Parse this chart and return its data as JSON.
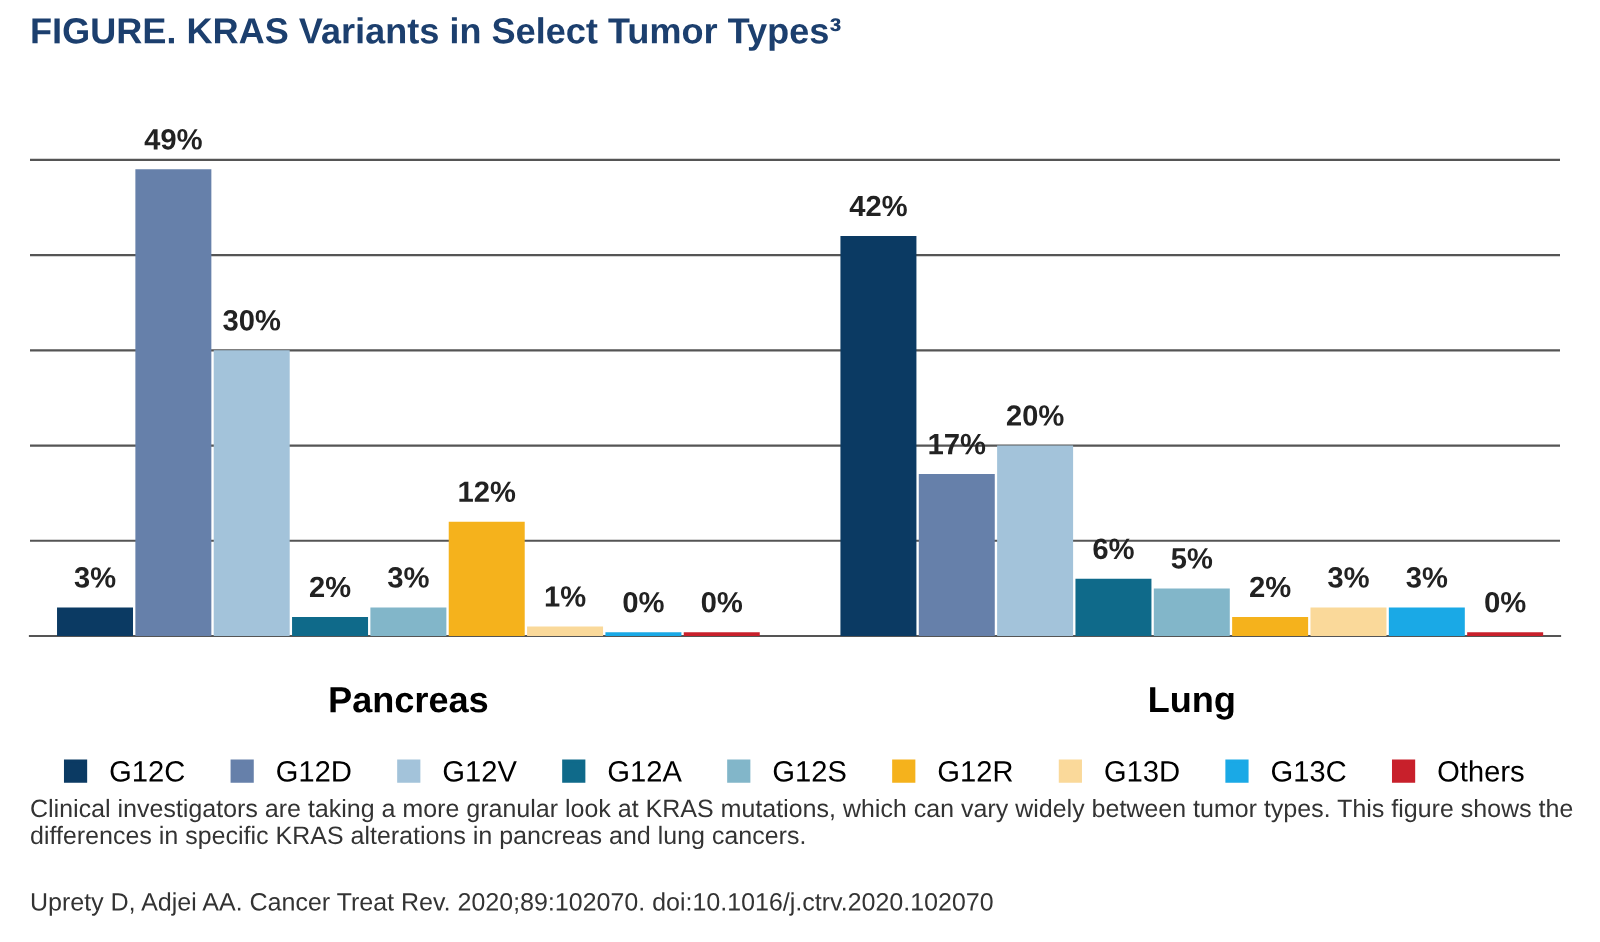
{
  "chart_data": {
    "type": "bar",
    "title": "FIGURE. KRAS Variants in Select Tumor Types³",
    "categories": [
      "Pancreas",
      "Lung"
    ],
    "series": [
      {
        "name": "G12C",
        "color": "#0b3a63",
        "values": [
          3,
          42
        ],
        "value_labels": [
          "3%",
          "42%"
        ]
      },
      {
        "name": "G12D",
        "color": "#6680aa",
        "values": [
          49,
          17
        ],
        "value_labels": [
          "49%",
          "17%"
        ]
      },
      {
        "name": "G12V",
        "color": "#a3c3da",
        "values": [
          30,
          20
        ],
        "value_labels": [
          "30%",
          "20%"
        ]
      },
      {
        "name": "G12A",
        "color": "#0f6a8a",
        "values": [
          2,
          6
        ],
        "value_labels": [
          "2%",
          "6%"
        ]
      },
      {
        "name": "G12S",
        "color": "#82b6c9",
        "values": [
          3,
          5
        ],
        "value_labels": [
          "3%",
          "5%"
        ]
      },
      {
        "name": "G12R",
        "color": "#f5b21c",
        "values": [
          12,
          2
        ],
        "value_labels": [
          "12%",
          "2%"
        ]
      },
      {
        "name": "G13D",
        "color": "#fad99a",
        "values": [
          1,
          3
        ],
        "value_labels": [
          "1%",
          "3%"
        ]
      },
      {
        "name": "G13C",
        "color": "#1aa9e6",
        "values": [
          0.4,
          3
        ],
        "value_labels": [
          "0%",
          "3%"
        ]
      },
      {
        "name": "Others",
        "color": "#c8202b",
        "values": [
          0.4,
          0.4
        ],
        "value_labels": [
          "0%",
          "0%"
        ]
      }
    ],
    "grid": "y",
    "legend": "bottom",
    "annotations": [
      "Clinical investigators are taking a more granular look at KRAS mutations, which can vary widely between tumor types. This figure shows the differences in specific KRAS alterations in pancreas and lung cancers.",
      "Uprety D, Adjei AA. Cancer Treat Rev. 2020;89:102070. doi:10.1016/j.ctrv.2020.102070"
    ]
  }
}
